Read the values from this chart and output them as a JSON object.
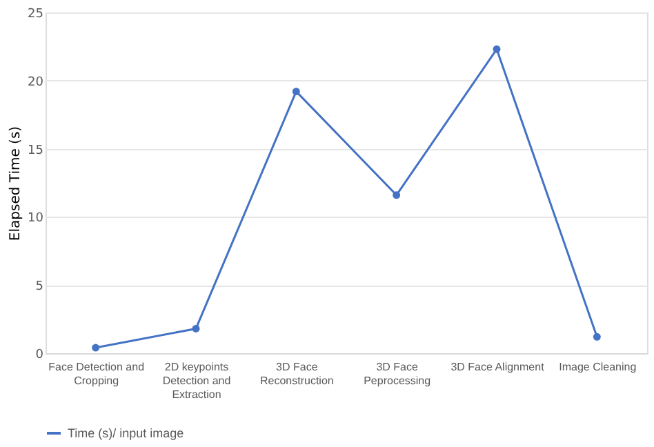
{
  "chart_data": {
    "type": "line",
    "ylabel": "Elapsed Time (s)",
    "categories": [
      "Face Detection and Cropping",
      "2D keypoints Detection and Extraction",
      "3D Face Reconstruction",
      "3D Face Peprocessing",
      "3D Face Alignment",
      "Image Cleaning"
    ],
    "series": [
      {
        "name": "Time (s)/ input image",
        "color": "#4472c4",
        "values": [
          0.4,
          1.8,
          19.2,
          11.6,
          22.3,
          1.2
        ]
      }
    ],
    "ylim": [
      0,
      25
    ],
    "yticks": [
      0,
      5,
      10,
      15,
      20,
      25
    ],
    "grid": "y",
    "legend": "bottom",
    "marker": "circle",
    "line_style": "solid"
  }
}
